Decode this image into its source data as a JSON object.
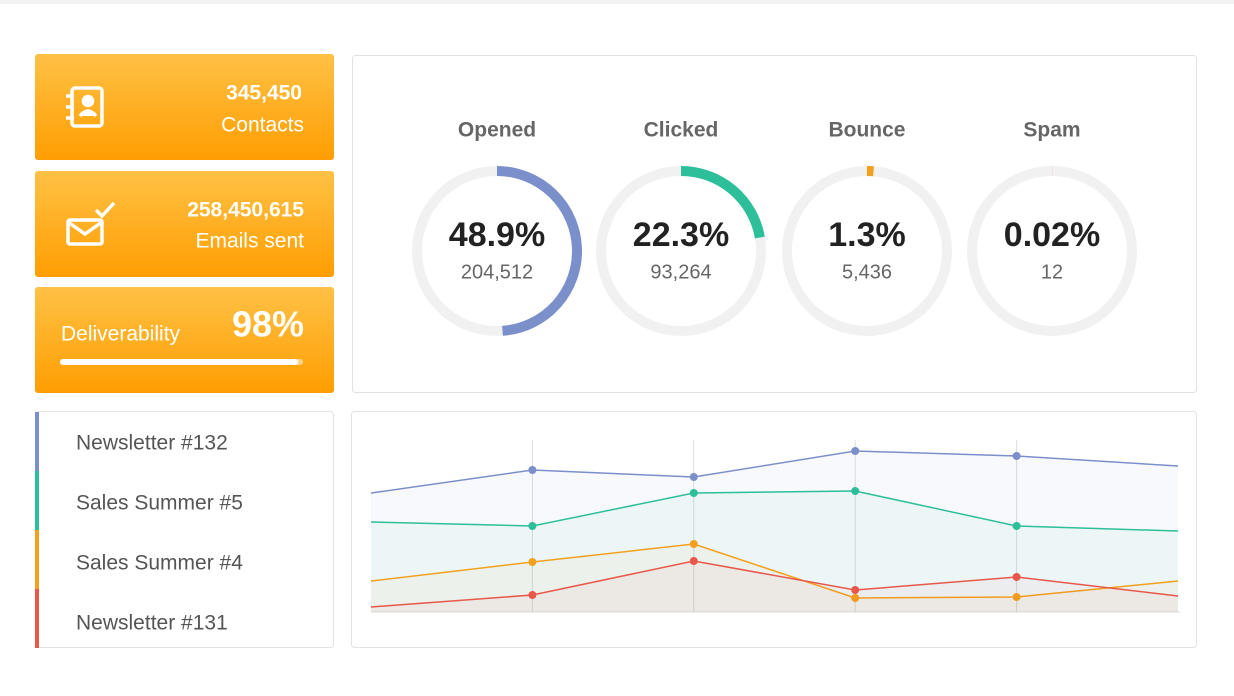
{
  "cards": [
    {
      "value": "345,450",
      "label": "Contacts"
    },
    {
      "value": "258,450,615",
      "label": "Emails sent"
    }
  ],
  "deliverability": {
    "label": "Deliverability",
    "value": 98,
    "value_label": "98%"
  },
  "rings": [
    {
      "title": "Opened",
      "value": 48.9,
      "value_label": "48.9%",
      "count": "204,512",
      "color": "#7b8fcb"
    },
    {
      "title": "Clicked",
      "value": 22.3,
      "value_label": "22.3%",
      "count": "93,264",
      "color": "#2dbf9a"
    },
    {
      "title": "Bounce",
      "value": 1.3,
      "value_label": "1.3%",
      "count": "5,436",
      "color": "#f2a01e"
    },
    {
      "title": "Spam",
      "value": 0.02,
      "value_label": "0.02%",
      "count": "12",
      "color": "#e8584a"
    }
  ],
  "chart_data": {
    "type": "line",
    "series": [
      {
        "name": "Newsletter #132",
        "color": "#7b8fcb",
        "values": [
          59.5,
          71,
          67.5,
          80.5,
          78,
          73
        ]
      },
      {
        "name": "Sales Summer #5",
        "color": "#2dbf9a",
        "values": [
          45,
          43,
          59.5,
          60.5,
          43,
          40.5
        ]
      },
      {
        "name": "Sales Summer #4",
        "color": "#f2a01e",
        "values": [
          15.5,
          25,
          34,
          7,
          7.5,
          15.5
        ]
      },
      {
        "name": "Newsletter #131",
        "color": "#e8584a",
        "values": [
          2.5,
          8.5,
          25.5,
          11,
          17.5,
          8
        ]
      }
    ]
  }
}
